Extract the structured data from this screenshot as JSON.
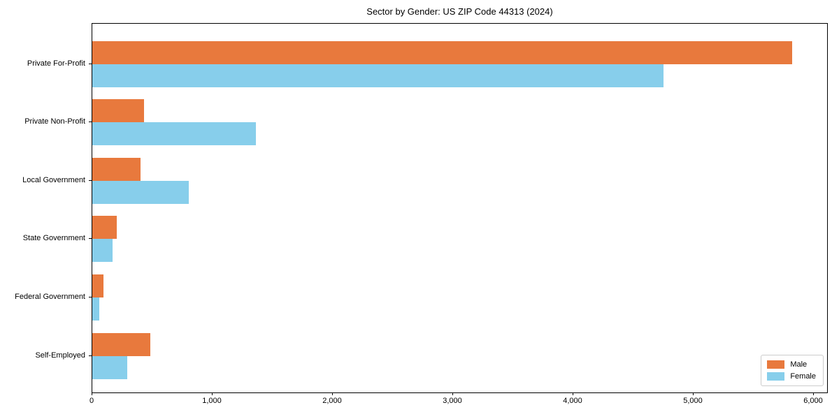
{
  "title": "Sector by Gender: US ZIP Code 44313 (2024)",
  "chart_data": {
    "type": "bar",
    "orientation": "horizontal",
    "title": "Sector by Gender: US ZIP Code 44313 (2024)",
    "categories": [
      "Private For-Profit",
      "Private Non-Profit",
      "Local Government",
      "State Government",
      "Federal Government",
      "Self-Employed"
    ],
    "series": [
      {
        "name": "Male",
        "color": "#e8793d",
        "values": [
          5820,
          430,
          400,
          205,
          95,
          485
        ]
      },
      {
        "name": "Female",
        "color": "#87ceeb",
        "values": [
          4750,
          1360,
          800,
          170,
          60,
          290
        ]
      }
    ],
    "xlabel": "",
    "ylabel": "",
    "xlim": [
      0,
      6110
    ],
    "xticks": [
      0,
      1000,
      2000,
      3000,
      4000,
      5000,
      6000
    ],
    "xtick_labels": [
      "0",
      "1,000",
      "2,000",
      "3,000",
      "4,000",
      "5,000",
      "6,000"
    ],
    "grid": false,
    "legend": {
      "position": "lower right",
      "entries": [
        "Male",
        "Female"
      ]
    }
  }
}
